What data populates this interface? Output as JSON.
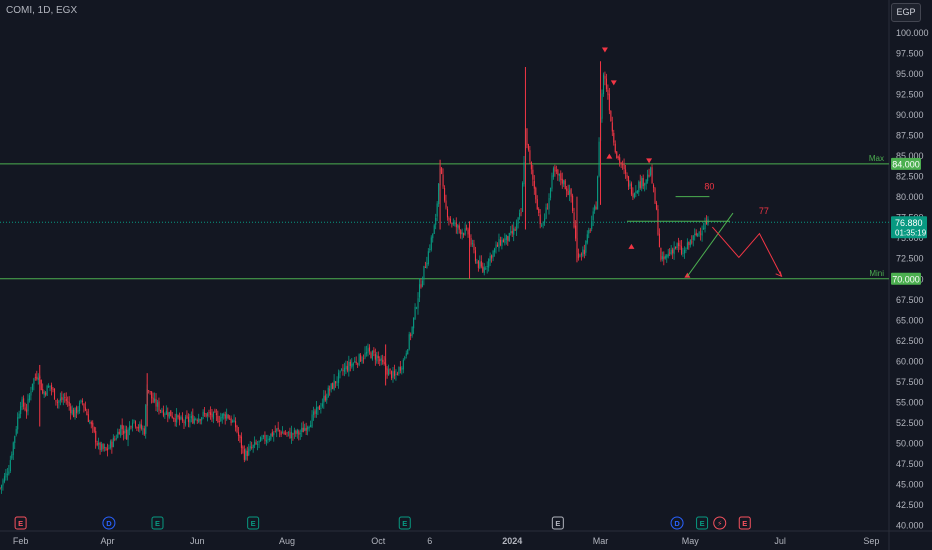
{
  "header": {
    "symbol": "COMI, 1D, EGX",
    "currency": "EGP"
  },
  "chart_data": {
    "type": "candlestick",
    "y_ticks": [
      "40.000",
      "42.500",
      "45.000",
      "47.500",
      "50.000",
      "52.500",
      "55.000",
      "57.500",
      "60.000",
      "62.500",
      "65.000",
      "67.500",
      "70.000",
      "72.500",
      "75.000",
      "77.500",
      "80.000",
      "82.500",
      "85.000",
      "87.500",
      "90.000",
      "92.500",
      "95.000",
      "97.500",
      "100.000"
    ],
    "y_range": [
      40,
      100
    ],
    "x_ticks": [
      {
        "label": "Feb",
        "day": 0
      },
      {
        "label": "Apr",
        "day": 59
      },
      {
        "label": "Jun",
        "day": 120
      },
      {
        "label": "Aug",
        "day": 181
      },
      {
        "label": "Oct",
        "day": 243
      },
      {
        "label": "6",
        "day": 278
      },
      {
        "label": "2024",
        "day": 334
      },
      {
        "label": "Mar",
        "day": 394
      },
      {
        "label": "May",
        "day": 455
      },
      {
        "label": "Jul",
        "day": 516
      },
      {
        "label": "Sep",
        "day": 578
      }
    ],
    "x_range": [
      -14,
      590
    ],
    "last_price": {
      "label": "76.880",
      "value": 76.88,
      "countdown": "01:35:19"
    },
    "levels": [
      {
        "name": "Max",
        "value": 84.0,
        "label": "84.000"
      },
      {
        "name": "Mini",
        "value": 70.0,
        "label": "70.000"
      }
    ],
    "annotations": [
      {
        "text": "80",
        "day": 468,
        "value": 80.9
      },
      {
        "text": "77",
        "day": 505,
        "value": 77.9
      }
    ],
    "events": [
      {
        "type": "E",
        "day": 0,
        "color": "#f7525f"
      },
      {
        "type": "D",
        "day": 60,
        "color": "#2962ff"
      },
      {
        "type": "E",
        "day": 93,
        "color": "#089981"
      },
      {
        "type": "E",
        "day": 158,
        "color": "#089981"
      },
      {
        "type": "E",
        "day": 261,
        "color": "#089981"
      },
      {
        "type": "E",
        "day": 365,
        "color": "#b2b5be"
      },
      {
        "type": "D",
        "day": 446,
        "color": "#2962ff"
      },
      {
        "type": "E",
        "day": 463,
        "color": "#089981"
      },
      {
        "type": "E",
        "day": 492,
        "color": "#f7525f"
      },
      {
        "type": "D",
        "day": 475,
        "color": "#f7525f",
        "icon": "lightning"
      }
    ],
    "series": [
      {
        "day": -14,
        "close": 44.5
      },
      {
        "day": -8,
        "close": 47
      },
      {
        "day": -4,
        "close": 51
      },
      {
        "day": 0,
        "close": 55
      },
      {
        "day": 4,
        "close": 54
      },
      {
        "day": 8,
        "close": 57.5
      },
      {
        "day": 12,
        "close": 58.5
      },
      {
        "day": 15,
        "close": 56
      },
      {
        "day": 20,
        "close": 57
      },
      {
        "day": 25,
        "close": 55
      },
      {
        "day": 30,
        "close": 55.5
      },
      {
        "day": 36,
        "close": 53.5
      },
      {
        "day": 42,
        "close": 55
      },
      {
        "day": 48,
        "close": 52
      },
      {
        "day": 53,
        "close": 49.5
      },
      {
        "day": 58,
        "close": 49
      },
      {
        "day": 64,
        "close": 50.5
      },
      {
        "day": 68,
        "close": 52
      },
      {
        "day": 72,
        "close": 51
      },
      {
        "day": 76,
        "close": 53
      },
      {
        "day": 80,
        "close": 52
      },
      {
        "day": 84,
        "close": 51.5
      },
      {
        "day": 86,
        "close": 57
      },
      {
        "day": 90,
        "close": 55
      },
      {
        "day": 96,
        "close": 54
      },
      {
        "day": 102,
        "close": 53.5
      },
      {
        "day": 110,
        "close": 52.5
      },
      {
        "day": 118,
        "close": 53
      },
      {
        "day": 126,
        "close": 53.5
      },
      {
        "day": 134,
        "close": 53
      },
      {
        "day": 140,
        "close": 53.5
      },
      {
        "day": 146,
        "close": 52
      },
      {
        "day": 152,
        "close": 48.5
      },
      {
        "day": 158,
        "close": 49.5
      },
      {
        "day": 166,
        "close": 50.5
      },
      {
        "day": 174,
        "close": 51.5
      },
      {
        "day": 182,
        "close": 51
      },
      {
        "day": 190,
        "close": 51.2
      },
      {
        "day": 196,
        "close": 52.5
      },
      {
        "day": 202,
        "close": 54
      },
      {
        "day": 208,
        "close": 56
      },
      {
        "day": 214,
        "close": 57.5
      },
      {
        "day": 220,
        "close": 59
      },
      {
        "day": 228,
        "close": 60
      },
      {
        "day": 236,
        "close": 61
      },
      {
        "day": 242,
        "close": 60.5
      },
      {
        "day": 248,
        "close": 59
      },
      {
        "day": 254,
        "close": 58
      },
      {
        "day": 260,
        "close": 60
      },
      {
        "day": 266,
        "close": 64
      },
      {
        "day": 270,
        "close": 68
      },
      {
        "day": 274,
        "close": 71
      },
      {
        "day": 278,
        "close": 74
      },
      {
        "day": 282,
        "close": 77
      },
      {
        "day": 285,
        "close": 84
      },
      {
        "day": 288,
        "close": 79
      },
      {
        "day": 292,
        "close": 77
      },
      {
        "day": 298,
        "close": 76
      },
      {
        "day": 304,
        "close": 75.5
      },
      {
        "day": 310,
        "close": 72
      },
      {
        "day": 314,
        "close": 71
      },
      {
        "day": 320,
        "close": 73
      },
      {
        "day": 326,
        "close": 74.5
      },
      {
        "day": 332,
        "close": 75
      },
      {
        "day": 336,
        "close": 76
      },
      {
        "day": 340,
        "close": 78
      },
      {
        "day": 343,
        "close": 88
      },
      {
        "day": 346,
        "close": 84
      },
      {
        "day": 350,
        "close": 80
      },
      {
        "day": 354,
        "close": 76
      },
      {
        "day": 358,
        "close": 79
      },
      {
        "day": 362,
        "close": 83
      },
      {
        "day": 368,
        "close": 82
      },
      {
        "day": 374,
        "close": 80
      },
      {
        "day": 378,
        "close": 73
      },
      {
        "day": 383,
        "close": 73.5
      },
      {
        "day": 388,
        "close": 77
      },
      {
        "day": 391,
        "close": 79
      },
      {
        "day": 394,
        "close": 90
      },
      {
        "day": 396,
        "close": 95
      },
      {
        "day": 399,
        "close": 92.5
      },
      {
        "day": 402,
        "close": 88
      },
      {
        "day": 405,
        "close": 85
      },
      {
        "day": 408,
        "close": 84
      },
      {
        "day": 412,
        "close": 82
      },
      {
        "day": 416,
        "close": 80.5
      },
      {
        "day": 420,
        "close": 81.5
      },
      {
        "day": 424,
        "close": 82
      },
      {
        "day": 428,
        "close": 83
      },
      {
        "day": 432,
        "close": 78
      },
      {
        "day": 435,
        "close": 72
      },
      {
        "day": 438,
        "close": 72.5
      },
      {
        "day": 442,
        "close": 73.5
      },
      {
        "day": 446,
        "close": 74
      },
      {
        "day": 450,
        "close": 73
      },
      {
        "day": 455,
        "close": 74.5
      },
      {
        "day": 460,
        "close": 75.5
      },
      {
        "day": 464,
        "close": 76.5
      },
      {
        "day": 468,
        "close": 76.88
      }
    ],
    "triangles": [
      {
        "day": 397,
        "value": 97.8,
        "dir": "down"
      },
      {
        "day": 403,
        "value": 93.8,
        "dir": "down"
      },
      {
        "day": 400,
        "value": 85.0,
        "dir": "up"
      },
      {
        "day": 427,
        "value": 84.3,
        "dir": "down"
      },
      {
        "day": 415,
        "value": 74.0,
        "dir": "up"
      },
      {
        "day": 453,
        "value": 70.5,
        "dir": "up"
      },
      {
        "day": 343,
        "value": 87.0,
        "dir": "none"
      }
    ]
  }
}
